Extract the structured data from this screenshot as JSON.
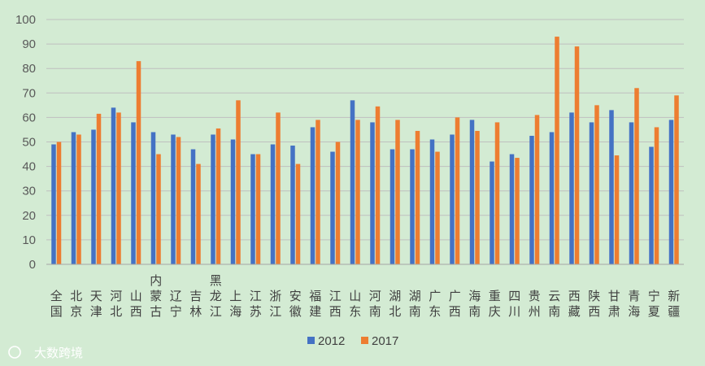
{
  "chart_data": {
    "type": "bar",
    "categories": [
      "全国",
      "北京",
      "天津",
      "河北",
      "山西",
      "内蒙古",
      "辽宁",
      "吉林",
      "黑龙江",
      "上海",
      "江苏",
      "浙江",
      "安徽",
      "福建",
      "江西",
      "山东",
      "河南",
      "湖北",
      "湖南",
      "广东",
      "广西",
      "海南",
      "重庆",
      "四川",
      "贵州",
      "云南",
      "西藏",
      "陕西",
      "甘肃",
      "青海",
      "宁夏",
      "新疆"
    ],
    "series": [
      {
        "name": "2012",
        "color": "#4472c4",
        "values": [
          49,
          54,
          55,
          64,
          58,
          54,
          53,
          47,
          53,
          51,
          45,
          49,
          48.5,
          56,
          46,
          67,
          58,
          47,
          47,
          51,
          53,
          59,
          42,
          45,
          52.5,
          54,
          62,
          58,
          63,
          58,
          48,
          59
        ]
      },
      {
        "name": "2017",
        "color": "#ed7d31",
        "values": [
          50,
          53,
          61.5,
          62,
          83,
          45,
          52,
          41,
          55.5,
          67,
          45,
          62,
          41,
          59,
          50,
          59,
          64.5,
          59,
          54.5,
          46,
          60,
          54.5,
          58,
          43.5,
          61,
          93,
          89,
          65,
          44.5,
          72,
          56,
          69
        ]
      }
    ],
    "ylim": [
      0,
      100
    ],
    "yticks": [
      0,
      10,
      20,
      30,
      40,
      50,
      60,
      70,
      80,
      90,
      100
    ],
    "grid": true,
    "legend": "bottom"
  },
  "watermark": {
    "text": "大数跨境"
  }
}
